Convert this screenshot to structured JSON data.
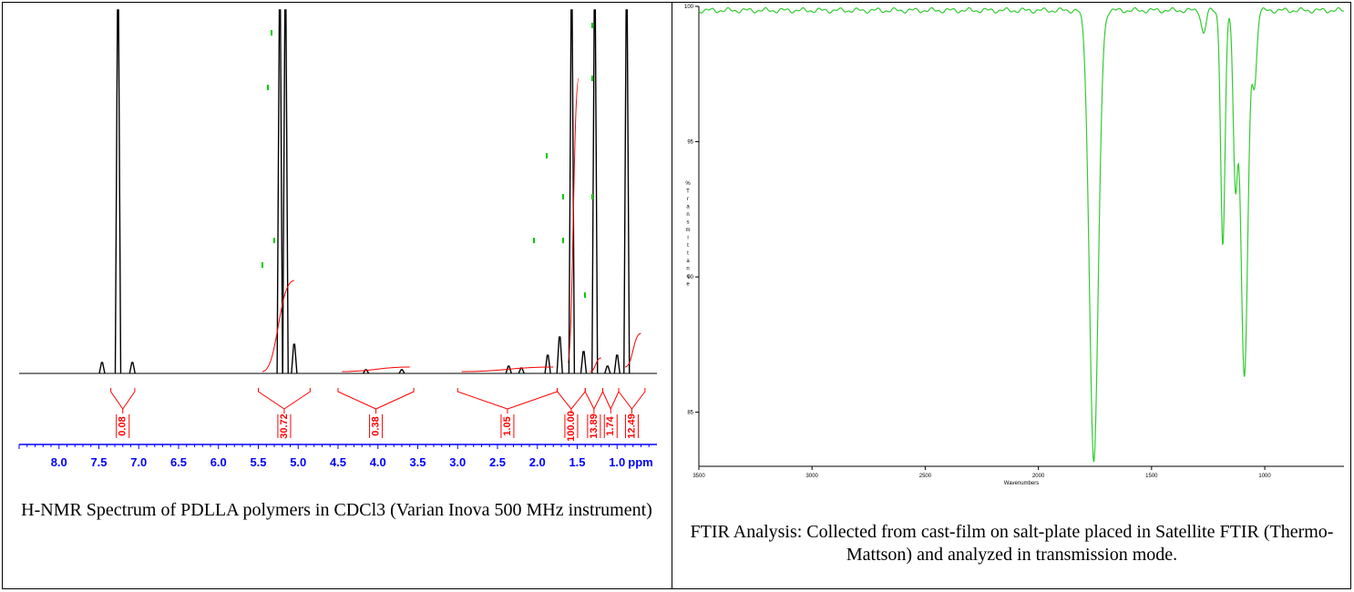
{
  "nmr": {
    "caption": "H-NMR Spectrum of PDLLA polymers in CDCl3 (Varian Inova 500 MHz instrument)",
    "chart_data": {
      "type": "line",
      "title": "",
      "xlabel": "ppm",
      "ylabel": "",
      "x_reversed": true,
      "xlim": [
        8.5,
        0.5
      ],
      "x_ticks": [
        "8.0",
        "7.5",
        "7.0",
        "6.5",
        "6.0",
        "5.5",
        "5.0",
        "4.5",
        "4.0",
        "3.5",
        "3.0",
        "2.5",
        "2.0",
        "1.5",
        "1.0",
        "ppm"
      ],
      "peaks": [
        {
          "ppm": 7.46,
          "height": 0.03
        },
        {
          "ppm": 7.26,
          "height": 1.0
        },
        {
          "ppm": 7.08,
          "height": 0.03
        },
        {
          "ppm": 5.23,
          "height": 1.0
        },
        {
          "ppm": 5.16,
          "height": 1.0
        },
        {
          "ppm": 5.05,
          "height": 0.08
        },
        {
          "ppm": 4.15,
          "height": 0.01
        },
        {
          "ppm": 3.7,
          "height": 0.01
        },
        {
          "ppm": 2.36,
          "height": 0.02
        },
        {
          "ppm": 2.2,
          "height": 0.015
        },
        {
          "ppm": 1.87,
          "height": 0.05
        },
        {
          "ppm": 1.72,
          "height": 0.1
        },
        {
          "ppm": 1.57,
          "height": 1.0
        },
        {
          "ppm": 1.42,
          "height": 0.06
        },
        {
          "ppm": 1.28,
          "height": 1.0
        },
        {
          "ppm": 1.12,
          "height": 0.02
        },
        {
          "ppm": 1.0,
          "height": 0.05
        },
        {
          "ppm": 0.88,
          "height": 1.0
        }
      ],
      "integrals": [
        {
          "label": "0.08",
          "from": 7.35,
          "to": 7.05
        },
        {
          "label": "30.72",
          "from": 5.5,
          "to": 4.85
        },
        {
          "label": "0.38",
          "from": 4.5,
          "to": 3.55
        },
        {
          "label": "1.05",
          "from": 3.0,
          "to": 1.75
        },
        {
          "label": "100.00",
          "from": 1.75,
          "to": 1.4
        },
        {
          "label": "13.89",
          "from": 1.4,
          "to": 1.18
        },
        {
          "label": "1.74",
          "from": 1.18,
          "to": 0.98
        },
        {
          "label": "12.49",
          "from": 0.98,
          "to": 0.65
        }
      ],
      "colors": {
        "spectrum": "#000000",
        "integral": "#ff0000",
        "axis": "#0000ff",
        "marker": "#00cc00"
      }
    }
  },
  "ftir": {
    "caption": "FTIR Analysis: Collected from cast-film on salt-plate placed in Satellite FTIR (Thermo-Mattson) and analyzed in transmission mode.",
    "chart_data": {
      "type": "line",
      "title": "",
      "xlabel": "Wavenumbers",
      "ylabel": "% Transmittance",
      "x_reversed": true,
      "xlim": [
        3500,
        650
      ],
      "ylim": [
        83,
        100
      ],
      "x_ticks": [
        "3500",
        "3000",
        "2500",
        "2000",
        "1500",
        "1000"
      ],
      "y_ticks": [
        "100",
        "95",
        "90",
        "85"
      ],
      "baseline": 99.85,
      "bands": [
        {
          "x": 1755,
          "y": 83.2
        },
        {
          "x": 1270,
          "y": 99.0
        },
        {
          "x": 1185,
          "y": 91.2
        },
        {
          "x": 1130,
          "y": 93.7
        },
        {
          "x": 1090,
          "y": 86.3
        },
        {
          "x": 1045,
          "y": 97.2
        }
      ],
      "colors": {
        "spectrum": "#33cc33",
        "axis": "#000000"
      }
    }
  }
}
